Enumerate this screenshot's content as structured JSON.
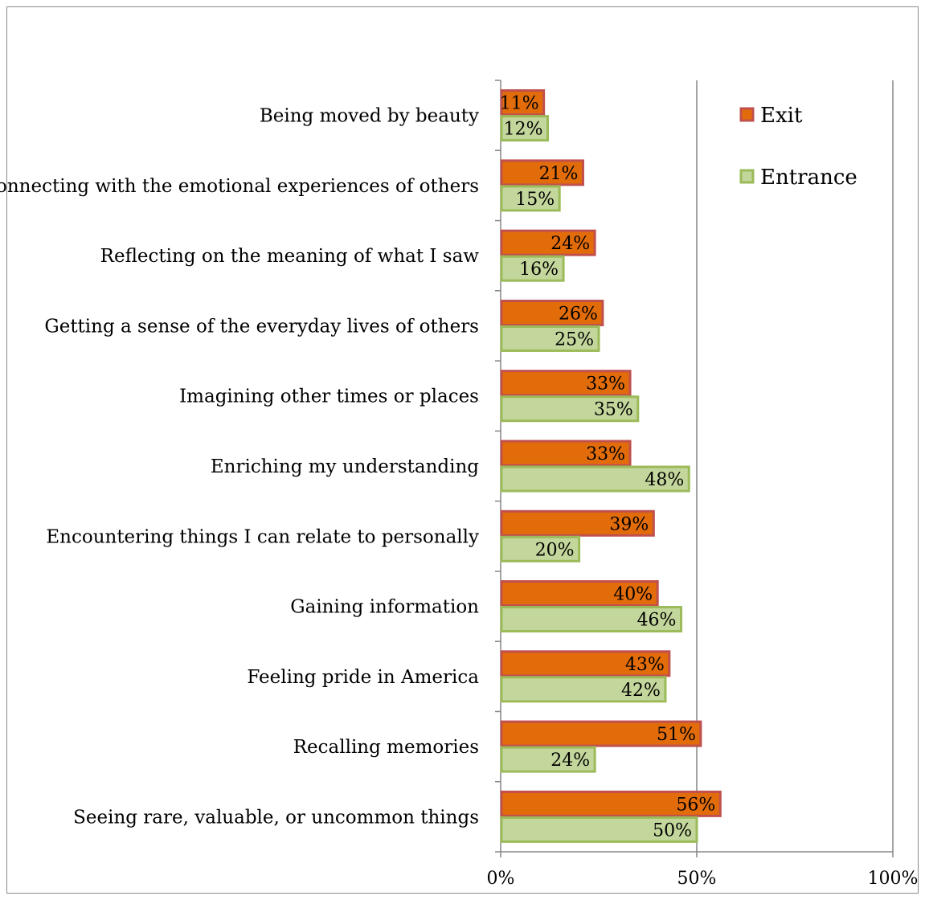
{
  "chart_data": {
    "type": "bar",
    "orientation": "horizontal",
    "title": "",
    "xlabel": "",
    "ylabel": "",
    "xlim": [
      0,
      100
    ],
    "x_ticks": [
      "0%",
      "50%",
      "100%"
    ],
    "grid": "vertical major gridlines",
    "legend_position": "top-right",
    "categories": [
      "Being moved by beauty",
      "Connecting with the emotional experiences of others",
      "Reflecting on the meaning of what I saw",
      "Getting a sense of the everyday lives of others",
      "Imagining other times or places",
      "Enriching my understanding",
      "Encountering things I can relate to personally",
      "Gaining information",
      "Feeling pride in America",
      "Recalling memories",
      "Seeing rare, valuable, or uncommon things"
    ],
    "series": [
      {
        "name": "Exit",
        "color": "#E36C0A",
        "border": "#C0504D",
        "values": [
          11,
          21,
          24,
          26,
          33,
          33,
          39,
          40,
          43,
          51,
          56
        ],
        "labels": [
          "11%",
          "21%",
          "24%",
          "26%",
          "33%",
          "33%",
          "39%",
          "40%",
          "43%",
          "51%",
          "56%"
        ]
      },
      {
        "name": "Entrance",
        "color": "#C3D69B",
        "border": "#9BBB59",
        "values": [
          12,
          15,
          16,
          25,
          35,
          48,
          20,
          46,
          42,
          24,
          50
        ],
        "labels": [
          "12%",
          "15%",
          "16%",
          "25%",
          "35%",
          "48%",
          "20%",
          "46%",
          "42%",
          "24%",
          "50%"
        ]
      }
    ]
  }
}
